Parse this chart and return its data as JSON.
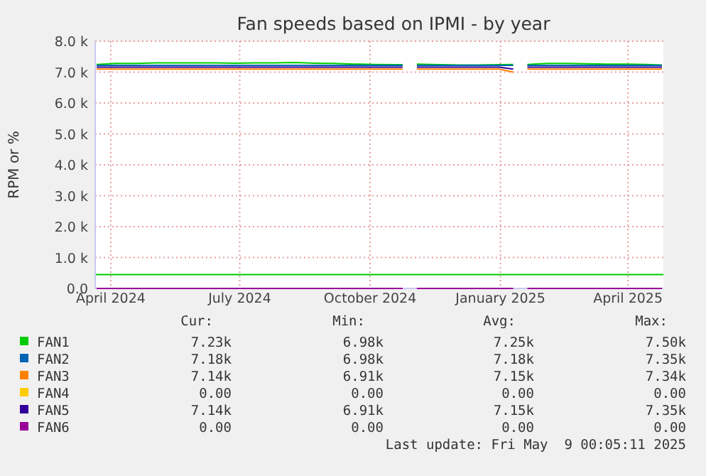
{
  "chart_data": {
    "type": "line",
    "title": "Fan speeds based on IPMI - by year",
    "ylabel": "RPM or %",
    "x": [
      "2024-03-22",
      "2024-04-05",
      "2024-04-19",
      "2024-05-03",
      "2024-05-17",
      "2024-05-31",
      "2024-06-14",
      "2024-06-28",
      "2024-07-12",
      "2024-07-26",
      "2024-08-09",
      "2024-08-23",
      "2024-09-06",
      "2024-09-20",
      "2024-10-04",
      "2024-10-18",
      "2024-10-24",
      "2024-10-28",
      "2024-11-03",
      "2024-11-19",
      "2024-12-03",
      "2024-12-17",
      "2024-12-31",
      "2025-01-10",
      "2025-01-14",
      "2025-01-20",
      "2025-02-03",
      "2025-02-17",
      "2025-03-03",
      "2025-03-17",
      "2025-03-31",
      "2025-04-14",
      "2025-04-25"
    ],
    "series": [
      {
        "name": "FAN1",
        "color": "#00cc00",
        "values": [
          7250,
          7280,
          7280,
          7300,
          7300,
          7300,
          7300,
          7290,
          7300,
          7300,
          7310,
          7290,
          7280,
          7260,
          7250,
          7240,
          7240,
          null,
          7260,
          7240,
          7230,
          7230,
          7240,
          7250,
          null,
          7250,
          7280,
          7280,
          7270,
          7260,
          7260,
          7250,
          7230
        ]
      },
      {
        "name": "FAN2",
        "color": "#0066b3",
        "values": [
          7220,
          7220,
          7220,
          7220,
          7220,
          7220,
          7220,
          7220,
          7220,
          7220,
          7220,
          7220,
          7220,
          7220,
          7220,
          7220,
          7220,
          null,
          7220,
          7220,
          7220,
          7220,
          7220,
          7220,
          null,
          7220,
          7220,
          7220,
          7220,
          7220,
          7220,
          7220,
          7220
        ]
      },
      {
        "name": "FAN3",
        "color": "#ff8000",
        "values": [
          7100,
          7100,
          7100,
          7100,
          7100,
          7100,
          7100,
          7100,
          7100,
          7100,
          7100,
          7100,
          7100,
          7100,
          7100,
          7100,
          7100,
          null,
          7100,
          7100,
          7100,
          7100,
          7100,
          7000,
          null,
          7100,
          7100,
          7100,
          7100,
          7100,
          7100,
          7100,
          7100
        ]
      },
      {
        "name": "FAN4",
        "color": "#ffcc00",
        "values": [
          null,
          null,
          null,
          null,
          null,
          null,
          null,
          null,
          null,
          null,
          null,
          null,
          null,
          null,
          null,
          null,
          null,
          null,
          null,
          null,
          null,
          null,
          null,
          null,
          null,
          null,
          null,
          null,
          null,
          null,
          null,
          null,
          null
        ]
      },
      {
        "name": "FAN5",
        "color": "#330099",
        "values": [
          7160,
          7160,
          7160,
          7160,
          7160,
          7160,
          7160,
          7160,
          7160,
          7160,
          7160,
          7160,
          7160,
          7160,
          7160,
          7160,
          7160,
          null,
          7160,
          7160,
          7160,
          7160,
          7160,
          7100,
          null,
          7160,
          7160,
          7160,
          7160,
          7160,
          7160,
          7160,
          7160
        ]
      },
      {
        "name": "FAN6",
        "color": "#990099",
        "values": [
          0,
          0,
          0,
          0,
          0,
          0,
          0,
          0,
          0,
          0,
          0,
          0,
          0,
          0,
          0,
          0,
          0,
          null,
          0,
          0,
          0,
          0,
          0,
          0,
          null,
          0,
          0,
          0,
          0,
          0,
          0,
          0,
          0
        ]
      }
    ],
    "xlim": [
      "2024-03-21",
      "2025-04-26"
    ],
    "xticks": [
      {
        "value": "2024-04-01",
        "label": "April 2024"
      },
      {
        "value": "2024-07-01",
        "label": "July 2024"
      },
      {
        "value": "2024-10-01",
        "label": "October 2024"
      },
      {
        "value": "2025-01-01",
        "label": "January 2025"
      },
      {
        "value": "2025-04-01",
        "label": "April 2025"
      }
    ],
    "ylim": [
      0,
      8000
    ],
    "yticks": [
      {
        "value": 0,
        "label": "0.0"
      },
      {
        "value": 1000,
        "label": "1.0 k"
      },
      {
        "value": 2000,
        "label": "2.0 k"
      },
      {
        "value": 3000,
        "label": "3.0 k"
      },
      {
        "value": 4000,
        "label": "4.0 k"
      },
      {
        "value": 5000,
        "label": "5.0 k"
      },
      {
        "value": 6000,
        "label": "6.0 k"
      },
      {
        "value": 7000,
        "label": "7.0 k"
      },
      {
        "value": 8000,
        "label": "8.0 k"
      }
    ],
    "ref_lines": [
      {
        "axis": "y",
        "value": 450,
        "label": null,
        "color": "#00cc00"
      }
    ],
    "grid": true,
    "legend": "bottom",
    "marker": "none",
    "line_style": "solid",
    "annotations": [
      "Cur:",
      "Min:",
      "Avg:",
      "Max:",
      "7.23k",
      "6.98k",
      "7.25k",
      "7.50k",
      "7.18k",
      "6.98k",
      "7.18k",
      "7.35k",
      "7.14k",
      "6.91k",
      "7.15k",
      "7.34k",
      "0.00",
      "0.00",
      "0.00",
      "0.00",
      "7.14k",
      "6.91k",
      "7.15k",
      "7.35k",
      "0.00",
      "0.00",
      "0.00",
      "0.00",
      "Last update: Fri May  9 00:05:11 2025"
    ]
  }
}
